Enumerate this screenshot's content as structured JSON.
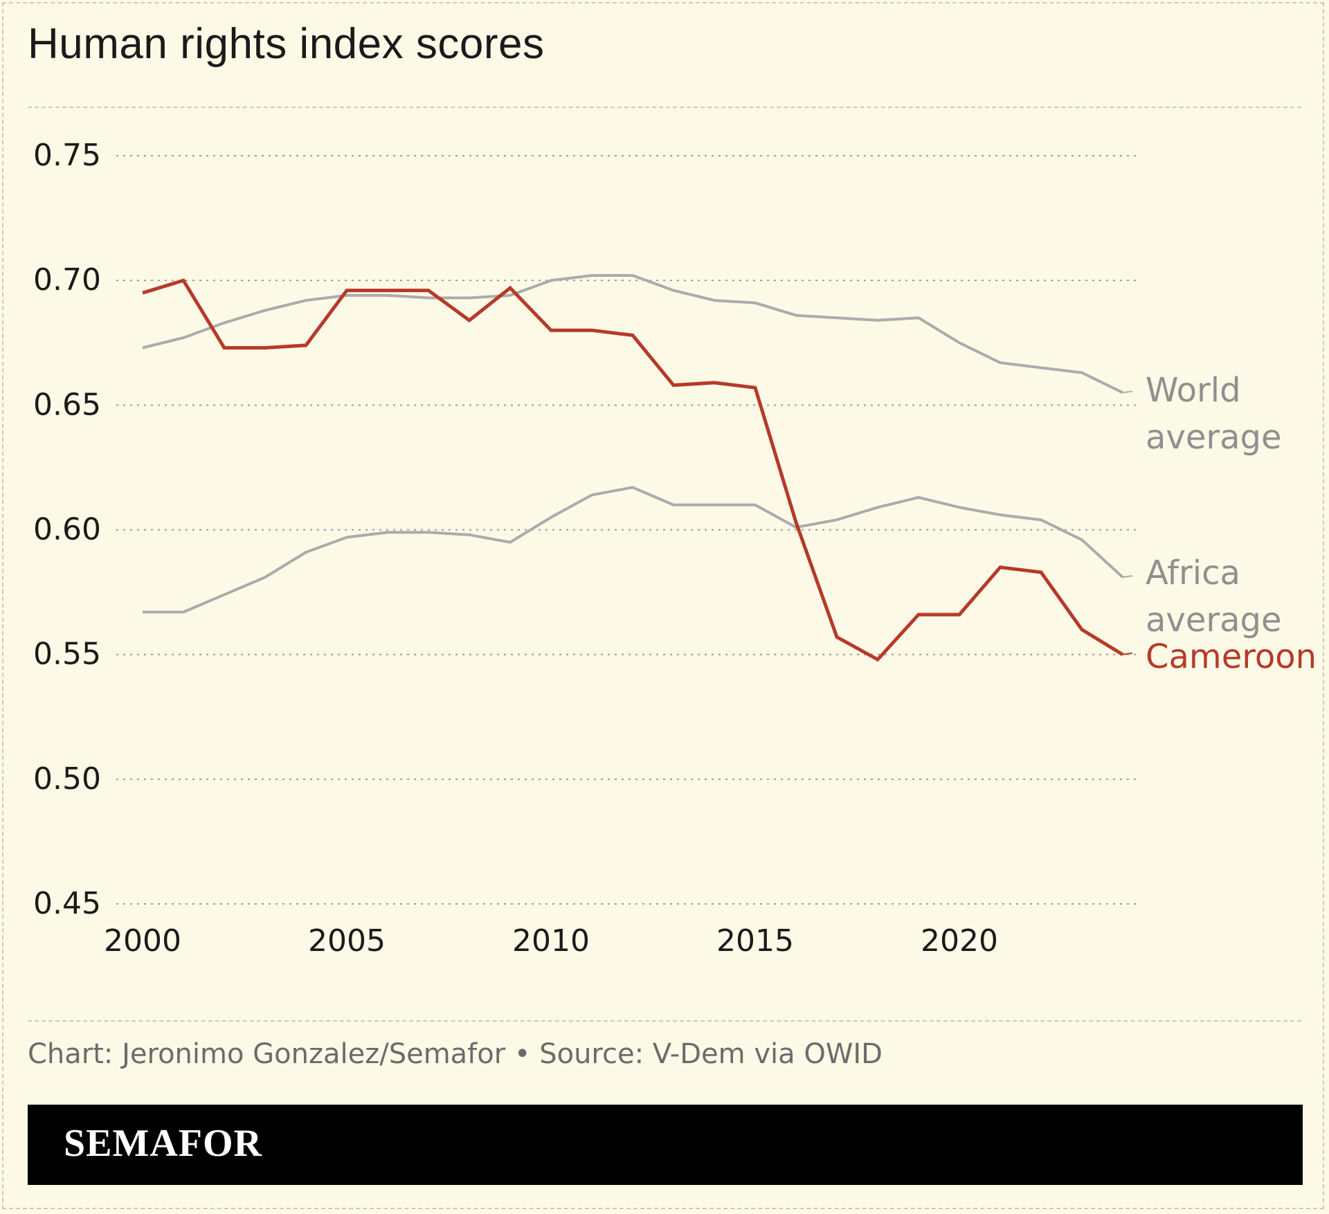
{
  "title": "Human rights index scores",
  "credit": "Chart: Jeronimo Gonzalez/Semafor • Source: V-Dem via OWID",
  "brand": "SEMAFOR",
  "chart_data": {
    "type": "line",
    "title": "Human rights index scores",
    "xlabel": "",
    "ylabel": "",
    "xlim": [
      2000,
      2024
    ],
    "ylim": [
      0.45,
      0.75
    ],
    "x_ticks": [
      "2000",
      "2005",
      "2010",
      "2015",
      "2020"
    ],
    "y_ticks": [
      "0.45",
      "0.50",
      "0.55",
      "0.60",
      "0.65",
      "0.70",
      "0.75"
    ],
    "grid": "horizontal dotted",
    "legend": "direct labels at line ends",
    "x": [
      2000,
      2001,
      2002,
      2003,
      2004,
      2005,
      2006,
      2007,
      2008,
      2009,
      2010,
      2011,
      2012,
      2013,
      2014,
      2015,
      2016,
      2017,
      2018,
      2019,
      2020,
      2021,
      2022,
      2023,
      2024
    ],
    "series": [
      {
        "name": "World average",
        "label_lines": [
          "World",
          "average"
        ],
        "color": "#ababab",
        "values": [
          0.673,
          0.677,
          0.683,
          0.688,
          0.692,
          0.694,
          0.694,
          0.693,
          0.693,
          0.694,
          0.7,
          0.702,
          0.702,
          0.696,
          0.692,
          0.691,
          0.686,
          0.685,
          0.684,
          0.685,
          0.675,
          0.667,
          0.665,
          0.663,
          0.655
        ]
      },
      {
        "name": "Africa average",
        "label_lines": [
          "Africa",
          "average"
        ],
        "color": "#ababab",
        "values": [
          0.567,
          0.567,
          0.574,
          0.581,
          0.591,
          0.597,
          0.599,
          0.599,
          0.598,
          0.595,
          0.605,
          0.614,
          0.617,
          0.61,
          0.61,
          0.61,
          0.601,
          0.604,
          0.609,
          0.613,
          0.609,
          0.606,
          0.604,
          0.596,
          0.581
        ]
      },
      {
        "name": "Cameroon",
        "label_lines": [
          "Cameroon"
        ],
        "color": "#b63a28",
        "values": [
          0.695,
          0.7,
          0.673,
          0.673,
          0.674,
          0.696,
          0.696,
          0.696,
          0.684,
          0.697,
          0.68,
          0.68,
          0.678,
          0.658,
          0.659,
          0.657,
          0.603,
          0.557,
          0.548,
          0.566,
          0.566,
          0.585,
          0.583,
          0.56,
          0.55
        ]
      }
    ]
  }
}
